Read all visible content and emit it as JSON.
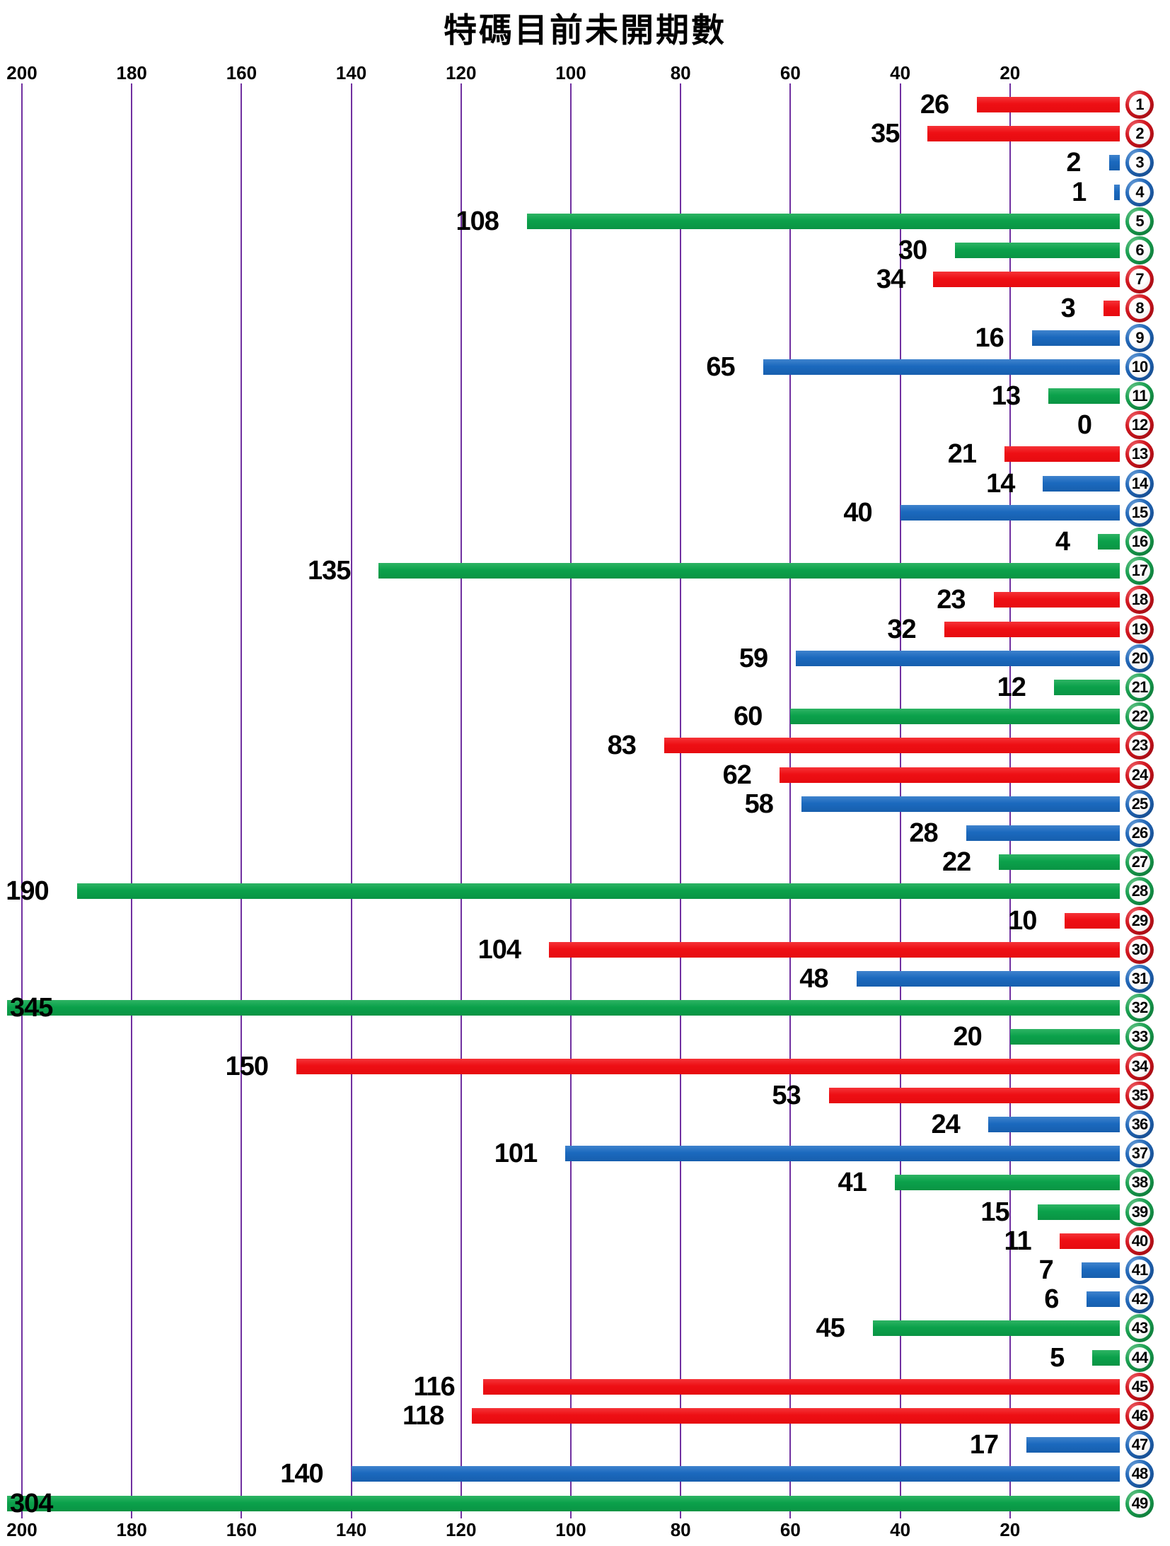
{
  "title": "特碼目前未開期數",
  "palette": {
    "red": "#ee0f14",
    "blue": "#1b69be",
    "green": "#0ba14b",
    "grid": "#7030a0",
    "text": "#000000",
    "ball_number": "#000000",
    "background": "#ffffff"
  },
  "axis": {
    "top_ticks": [
      "200",
      "180",
      "160",
      "140",
      "120",
      "100",
      "80",
      "60",
      "40",
      "20"
    ],
    "bottom_ticks": [
      "200",
      "180",
      "160",
      "140",
      "120",
      "100",
      "80",
      "60",
      "40",
      "20"
    ]
  },
  "chart_data": {
    "type": "bar",
    "orientation": "horizontal_right_anchored",
    "title": "特碼目前未開期數",
    "xlabel": "",
    "ylabel": "",
    "grid": true,
    "x_axis": {
      "ticks": [
        200,
        180,
        160,
        140,
        120,
        100,
        80,
        60,
        40,
        20
      ],
      "min": 0,
      "max": 200,
      "direction": "right_to_left"
    },
    "categories": [
      1,
      2,
      3,
      4,
      5,
      6,
      7,
      8,
      9,
      10,
      11,
      12,
      13,
      14,
      15,
      16,
      17,
      18,
      19,
      20,
      21,
      22,
      23,
      24,
      25,
      26,
      27,
      28,
      29,
      30,
      31,
      32,
      33,
      34,
      35,
      36,
      37,
      38,
      39,
      40,
      41,
      42,
      43,
      44,
      45,
      46,
      47,
      48,
      49
    ],
    "values": [
      26,
      35,
      2,
      1,
      108,
      30,
      34,
      3,
      16,
      65,
      13,
      0,
      21,
      14,
      40,
      4,
      135,
      23,
      32,
      59,
      12,
      60,
      83,
      62,
      58,
      28,
      22,
      190,
      10,
      104,
      48,
      345,
      20,
      150,
      53,
      24,
      101,
      41,
      15,
      11,
      7,
      6,
      45,
      5,
      116,
      118,
      17,
      140,
      304
    ],
    "colors": [
      "red",
      "red",
      "blue",
      "blue",
      "green",
      "green",
      "red",
      "red",
      "blue",
      "blue",
      "green",
      "red",
      "red",
      "blue",
      "blue",
      "green",
      "green",
      "red",
      "red",
      "blue",
      "green",
      "green",
      "red",
      "red",
      "blue",
      "blue",
      "green",
      "green",
      "red",
      "red",
      "blue",
      "green",
      "green",
      "red",
      "red",
      "blue",
      "blue",
      "green",
      "green",
      "red",
      "blue",
      "blue",
      "green",
      "green",
      "red",
      "red",
      "blue",
      "blue",
      "green"
    ]
  }
}
